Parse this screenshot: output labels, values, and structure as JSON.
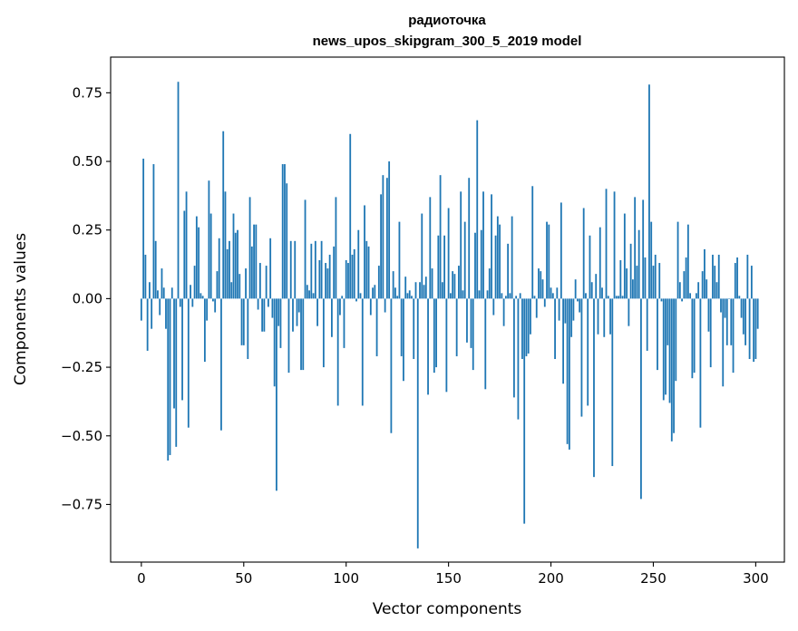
{
  "chart_data": {
    "type": "bar",
    "title": "радиоточка",
    "subtitle": "news_upos_skipgram_300_5_2019 model",
    "xlabel": "Vector components",
    "ylabel": "Components values",
    "xlim": [
      -15,
      314
    ],
    "ylim": [
      -0.96,
      0.88
    ],
    "xticks": [
      0,
      50,
      100,
      150,
      200,
      250,
      300
    ],
    "yticks": [
      -0.75,
      -0.5,
      -0.25,
      0.0,
      0.25,
      0.5,
      0.75
    ],
    "xtick_labels": [
      "0",
      "50",
      "100",
      "150",
      "200",
      "250",
      "300"
    ],
    "ytick_labels": [
      "−0.75",
      "−0.50",
      "−0.25",
      "0.00",
      "0.25",
      "0.50",
      "0.75"
    ],
    "bar_color": "#1f77b4",
    "grid": false,
    "legend": "none",
    "values": [
      -0.08,
      0.51,
      0.16,
      -0.19,
      0.06,
      -0.11,
      0.49,
      0.21,
      0.03,
      -0.06,
      0.11,
      0.04,
      -0.11,
      -0.59,
      -0.57,
      0.04,
      -0.4,
      -0.54,
      0.79,
      -0.03,
      -0.37,
      0.32,
      0.39,
      -0.47,
      0.05,
      -0.03,
      0.12,
      0.3,
      0.26,
      0.02,
      0.01,
      -0.23,
      -0.08,
      0.43,
      0.31,
      -0.01,
      -0.05,
      0.1,
      0.22,
      -0.48,
      0.61,
      0.39,
      0.18,
      0.21,
      0.06,
      0.31,
      0.24,
      0.25,
      0.09,
      -0.17,
      -0.17,
      0.11,
      -0.22,
      0.37,
      0.19,
      0.27,
      0.27,
      -0.04,
      0.13,
      -0.12,
      -0.12,
      0.12,
      -0.03,
      0.22,
      -0.07,
      -0.32,
      -0.7,
      -0.1,
      -0.18,
      0.49,
      0.49,
      0.42,
      -0.27,
      0.21,
      -0.12,
      0.21,
      -0.1,
      -0.05,
      -0.26,
      -0.26,
      0.36,
      0.05,
      0.03,
      0.2,
      0.02,
      0.21,
      -0.1,
      0.14,
      0.21,
      -0.25,
      0.13,
      0.11,
      0.16,
      -0.14,
      0.19,
      0.37,
      -0.39,
      -0.06,
      0.01,
      -0.18,
      0.14,
      0.13,
      0.6,
      0.16,
      0.18,
      -0.01,
      0.25,
      0.02,
      -0.39,
      0.34,
      0.21,
      0.19,
      -0.06,
      0.04,
      0.05,
      -0.21,
      0.12,
      0.38,
      0.45,
      -0.05,
      0.44,
      0.5,
      -0.49,
      0.1,
      0.04,
      0.01,
      0.28,
      -0.21,
      -0.3,
      0.08,
      0.02,
      0.03,
      0.01,
      -0.22,
      0.06,
      -0.91,
      0.06,
      0.31,
      0.05,
      0.08,
      -0.35,
      0.37,
      0.11,
      -0.27,
      -0.25,
      0.23,
      0.45,
      0.06,
      0.23,
      -0.34,
      0.33,
      0.02,
      0.1,
      0.09,
      -0.21,
      0.12,
      0.39,
      0.03,
      0.28,
      -0.16,
      0.44,
      -0.18,
      -0.26,
      0.24,
      0.65,
      0.03,
      0.25,
      0.39,
      -0.33,
      0.03,
      0.11,
      0.38,
      -0.06,
      0.23,
      0.3,
      0.27,
      0.02,
      -0.1,
      0.01,
      0.2,
      0.02,
      0.3,
      -0.36,
      0.01,
      -0.44,
      0.02,
      -0.22,
      -0.82,
      -0.21,
      -0.2,
      -0.13,
      0.41,
      0.01,
      -0.07,
      0.11,
      0.1,
      0.07,
      -0.03,
      0.28,
      0.27,
      0.04,
      0.02,
      -0.22,
      0.04,
      -0.08,
      0.35,
      -0.31,
      -0.09,
      -0.53,
      -0.55,
      -0.14,
      -0.08,
      0.07,
      -0.01,
      -0.05,
      -0.43,
      0.33,
      0.02,
      -0.39,
      0.23,
      0.06,
      -0.65,
      0.09,
      -0.13,
      0.26,
      0.04,
      -0.14,
      0.4,
      0.01,
      -0.13,
      -0.61,
      0.39,
      0.01,
      0.01,
      0.14,
      0.01,
      0.31,
      0.11,
      -0.1,
      0.2,
      0.07,
      0.37,
      0.12,
      0.25,
      -0.73,
      0.36,
      0.15,
      -0.19,
      0.78,
      0.28,
      0.12,
      0.16,
      -0.26,
      0.13,
      -0.01,
      -0.37,
      -0.35,
      -0.17,
      -0.38,
      -0.52,
      -0.49,
      -0.3,
      0.28,
      0.06,
      -0.01,
      0.1,
      0.15,
      0.27,
      0.02,
      -0.29,
      -0.27,
      0.02,
      0.06,
      -0.47,
      0.1,
      0.18,
      0.07,
      -0.12,
      -0.25,
      0.16,
      0.12,
      0.06,
      0.16,
      -0.05,
      -0.32,
      -0.07,
      -0.17,
      0.0,
      -0.17,
      -0.27,
      0.13,
      0.15,
      0.01,
      -0.07,
      -0.13,
      -0.17,
      0.16,
      -0.22,
      0.12,
      -0.23,
      -0.22,
      -0.11
    ]
  }
}
